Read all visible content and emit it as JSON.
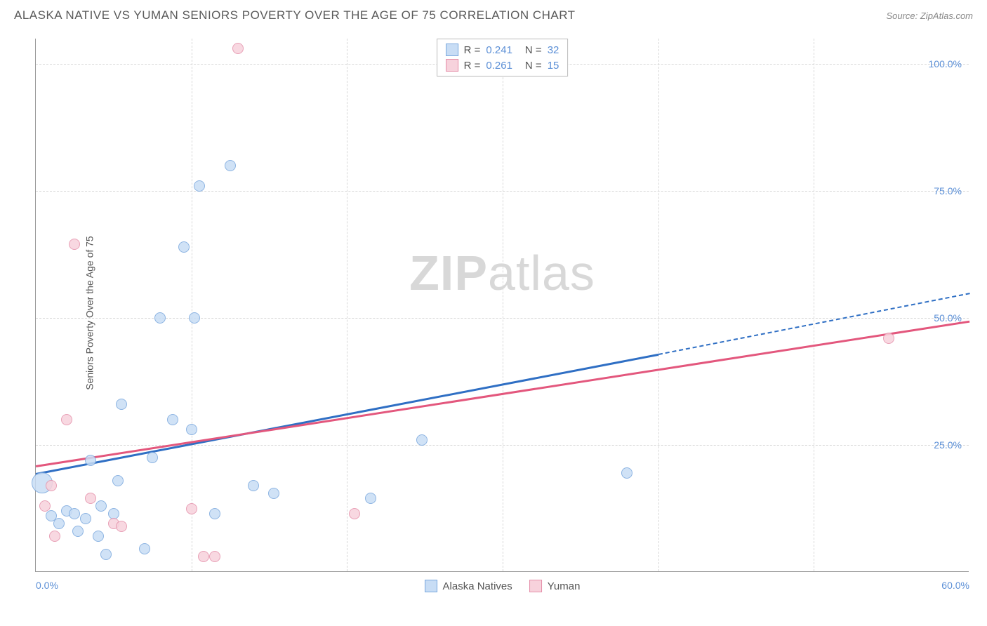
{
  "header": {
    "title": "ALASKA NATIVE VS YUMAN SENIORS POVERTY OVER THE AGE OF 75 CORRELATION CHART",
    "source": "Source: ZipAtlas.com"
  },
  "chart": {
    "type": "scatter",
    "y_axis_title": "Seniors Poverty Over the Age of 75",
    "xlim": [
      0,
      60
    ],
    "ylim": [
      0,
      105
    ],
    "xticks": [
      {
        "v": 0,
        "label": "0.0%"
      },
      {
        "v": 60,
        "label": "60.0%"
      }
    ],
    "xgrid": [
      10,
      20,
      30,
      40,
      50
    ],
    "yticks": [
      {
        "v": 25,
        "label": "25.0%"
      },
      {
        "v": 50,
        "label": "50.0%"
      },
      {
        "v": 75,
        "label": "75.0%"
      },
      {
        "v": 100,
        "label": "100.0%"
      }
    ],
    "watermark": {
      "bold": "ZIP",
      "rest": "atlas"
    },
    "background_color": "#ffffff",
    "grid_color": "#d8d8d8",
    "axis_color": "#999999",
    "tick_label_color": "#5b8fd6",
    "series": [
      {
        "name": "Alaska Natives",
        "fill": "#c8ddf5",
        "stroke": "#7aa8de",
        "line_color": "#2f6fc4",
        "marker_r": 8,
        "points": [
          {
            "x": 0.4,
            "y": 17.5,
            "r": 15
          },
          {
            "x": 1.0,
            "y": 11.0
          },
          {
            "x": 1.5,
            "y": 9.5
          },
          {
            "x": 2.0,
            "y": 12.0
          },
          {
            "x": 2.5,
            "y": 11.5
          },
          {
            "x": 2.7,
            "y": 8.0
          },
          {
            "x": 3.2,
            "y": 10.5
          },
          {
            "x": 3.5,
            "y": 22.0
          },
          {
            "x": 4.0,
            "y": 7.0
          },
          {
            "x": 4.2,
            "y": 13.0
          },
          {
            "x": 4.5,
            "y": 3.5
          },
          {
            "x": 5.0,
            "y": 11.5
          },
          {
            "x": 5.3,
            "y": 18.0
          },
          {
            "x": 5.5,
            "y": 33.0
          },
          {
            "x": 7.0,
            "y": 4.5
          },
          {
            "x": 7.5,
            "y": 22.5
          },
          {
            "x": 8.0,
            "y": 50.0
          },
          {
            "x": 8.8,
            "y": 30.0
          },
          {
            "x": 9.5,
            "y": 64.0
          },
          {
            "x": 10.0,
            "y": 28.0
          },
          {
            "x": 10.2,
            "y": 50.0
          },
          {
            "x": 10.5,
            "y": 76.0
          },
          {
            "x": 11.5,
            "y": 11.5
          },
          {
            "x": 12.5,
            "y": 80.0
          },
          {
            "x": 14.0,
            "y": 17.0
          },
          {
            "x": 15.3,
            "y": 15.5
          },
          {
            "x": 21.5,
            "y": 14.5
          },
          {
            "x": 24.8,
            "y": 26.0
          },
          {
            "x": 38.0,
            "y": 19.5
          }
        ],
        "trend": {
          "x1": 0,
          "y1": 19.5,
          "x2": 40,
          "y2": 43.0,
          "x2_dash": 60,
          "y2_dash": 55.0
        }
      },
      {
        "name": "Yuman",
        "fill": "#f7d2dc",
        "stroke": "#e590aa",
        "line_color": "#e3577d",
        "marker_r": 8,
        "points": [
          {
            "x": 0.6,
            "y": 13.0
          },
          {
            "x": 1.0,
            "y": 17.0
          },
          {
            "x": 1.2,
            "y": 7.0
          },
          {
            "x": 2.0,
            "y": 30.0
          },
          {
            "x": 2.5,
            "y": 64.5
          },
          {
            "x": 3.5,
            "y": 14.5
          },
          {
            "x": 5.0,
            "y": 9.5
          },
          {
            "x": 5.5,
            "y": 9.0
          },
          {
            "x": 10.0,
            "y": 12.5
          },
          {
            "x": 10.8,
            "y": 3.0
          },
          {
            "x": 11.5,
            "y": 3.0
          },
          {
            "x": 13.0,
            "y": 103.0
          },
          {
            "x": 20.5,
            "y": 11.5
          },
          {
            "x": 54.8,
            "y": 46.0
          }
        ],
        "trend": {
          "x1": 0,
          "y1": 21.0,
          "x2": 60,
          "y2": 49.5
        }
      }
    ],
    "legend_top": [
      {
        "swatch_fill": "#c8ddf5",
        "swatch_stroke": "#7aa8de",
        "r_label": "R =",
        "r_val": "0.241",
        "n_label": "N =",
        "n_val": "32"
      },
      {
        "swatch_fill": "#f7d2dc",
        "swatch_stroke": "#e590aa",
        "r_label": "R =",
        "r_val": "0.261",
        "n_label": "N =",
        "n_val": "15"
      }
    ],
    "legend_bottom": [
      {
        "swatch_fill": "#c8ddf5",
        "swatch_stroke": "#7aa8de",
        "label": "Alaska Natives"
      },
      {
        "swatch_fill": "#f7d2dc",
        "swatch_stroke": "#e590aa",
        "label": "Yuman"
      }
    ]
  }
}
